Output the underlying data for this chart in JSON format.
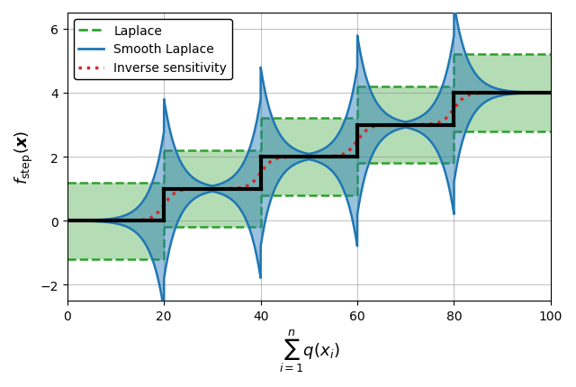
{
  "xlabel": "$\\sum_{i=1}^{n} q(x_i)$",
  "ylabel": "$f_{\\mathrm{step}}(\\boldsymbol{x})$",
  "xlim": [
    0,
    100
  ],
  "ylim": [
    -2.5,
    6.5
  ],
  "xticks": [
    0,
    20,
    40,
    60,
    80,
    100
  ],
  "yticks": [
    -2,
    0,
    2,
    4,
    6
  ],
  "breakpoints": [
    20,
    40,
    60,
    80
  ],
  "step_values": [
    0,
    1,
    2,
    3,
    4
  ],
  "laplace_halfwidth": 1.2,
  "green_color": "#2ca02c",
  "blue_color": "#1f77b4",
  "red_color": "#d62728",
  "black_color": "#000000",
  "green_fill_alpha": 0.35,
  "blue_fill_alpha": 0.45,
  "figsize": [
    6.4,
    4.31
  ],
  "dpi": 100
}
